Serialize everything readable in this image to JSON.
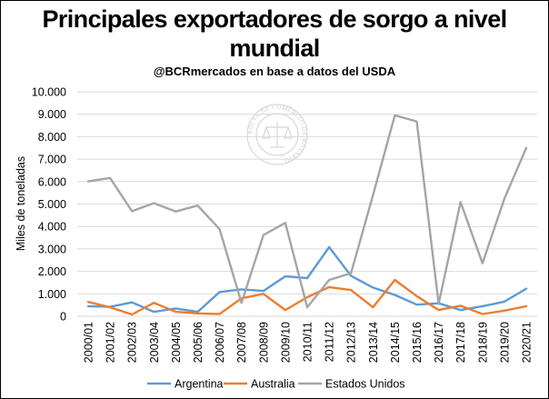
{
  "title_line1": "Principales exportadores de sorgo a nivel",
  "title_line2": "mundial",
  "subtitle": "@BCRmercados en base a datos del USDA",
  "watermark": "BOLSA DE COMERCIO DE ROSARIO",
  "chart_data": {
    "type": "line",
    "ylabel": "Miles de toneladas",
    "xlabel": "",
    "ylim": [
      0,
      10000
    ],
    "yticks": [
      0,
      1000,
      2000,
      3000,
      4000,
      5000,
      6000,
      7000,
      8000,
      9000,
      10000
    ],
    "ytick_labels": [
      "0",
      "1.000",
      "2.000",
      "3.000",
      "4.000",
      "5.000",
      "6.000",
      "7.000",
      "8.000",
      "9.000",
      "10.000"
    ],
    "grid": true,
    "legend": "bottom",
    "categories": [
      "2000/01",
      "2001/02",
      "2002/03",
      "2003/04",
      "2004/05",
      "2005/06",
      "2006/07",
      "2007/08",
      "2008/09",
      "2009/10",
      "2010/11",
      "2011/12",
      "2012/13",
      "2013/14",
      "2014/15",
      "2015/16",
      "2016/17",
      "2017/18",
      "2018/19",
      "2019/20",
      "2020/21"
    ],
    "series": [
      {
        "name": "Argentina",
        "color": "#5b9bd5",
        "values": [
          450,
          420,
          620,
          200,
          350,
          200,
          1080,
          1200,
          1130,
          1780,
          1700,
          3080,
          1800,
          1280,
          950,
          520,
          580,
          280,
          450,
          650,
          1230
        ]
      },
      {
        "name": "Australia",
        "color": "#ed7d31",
        "values": [
          640,
          400,
          80,
          600,
          200,
          130,
          100,
          800,
          1000,
          280,
          850,
          1300,
          1170,
          400,
          1620,
          900,
          280,
          470,
          100,
          250,
          450
        ]
      },
      {
        "name": "Estados Unidos",
        "color": "#a5a5a5",
        "values": [
          6010,
          6160,
          4680,
          5040,
          4670,
          4930,
          3880,
          600,
          3620,
          4160,
          400,
          1620,
          1920,
          5390,
          8950,
          8680,
          550,
          5090,
          2360,
          5240,
          7500
        ]
      }
    ]
  }
}
